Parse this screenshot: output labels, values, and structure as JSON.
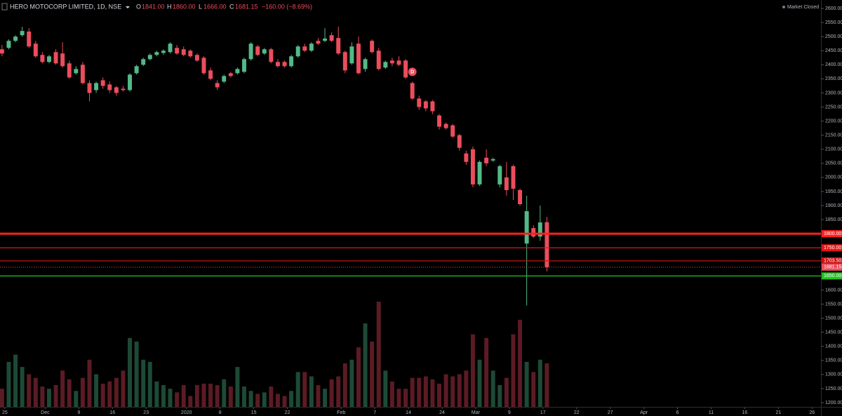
{
  "header": {
    "symbol": "HERO MOTOCORP LIMITED, 1D, NSE",
    "o_label": "O",
    "o": "1841.00",
    "h_label": "H",
    "h": "1860.00",
    "l_label": "L",
    "l": "1666.00",
    "c_label": "C",
    "c": "1681.15",
    "change": "−160.00 (−8.69%)",
    "status": "Market Closed"
  },
  "chart_data": {
    "type": "candlestick",
    "up_color": "#53b987",
    "down_color": "#eb4d5c",
    "volume_up_color": "#1d4a36",
    "volume_down_color": "#5c1b24",
    "open": [
      2455,
      2460,
      2485,
      2505,
      2518,
      2475,
      2435,
      2410,
      2445,
      2440,
      2405,
      2370,
      2400,
      2335,
      2310,
      2345,
      2330,
      2320,
      2315,
      2310,
      2370,
      2400,
      2420,
      2435,
      2442,
      2445,
      2460,
      2455,
      2450,
      2435,
      2425,
      2380,
      2335,
      2340,
      2370,
      2370,
      2375,
      2420,
      2465,
      2440,
      2455,
      2410,
      2410,
      2395,
      2430,
      2465,
      2450,
      2485,
      2485,
      2505,
      2495,
      2445,
      2405,
      2475,
      2385,
      2485,
      2450,
      2390,
      2415,
      2415,
      2415,
      2335,
      2280,
      2270,
      2270,
      2220,
      2190,
      2185,
      2150,
      2085,
      2100,
      1975,
      2070,
      2060,
      1975,
      2000,
      2040,
      1955,
      1765,
      1820,
      1790,
      1841
    ],
    "high": [
      2470,
      2490,
      2505,
      2535,
      2530,
      2485,
      2445,
      2435,
      2455,
      2480,
      2415,
      2395,
      2410,
      2345,
      2340,
      2355,
      2340,
      2325,
      2325,
      2370,
      2400,
      2425,
      2440,
      2450,
      2455,
      2480,
      2470,
      2465,
      2455,
      2440,
      2430,
      2390,
      2345,
      2365,
      2375,
      2390,
      2425,
      2480,
      2470,
      2460,
      2460,
      2420,
      2415,
      2435,
      2470,
      2475,
      2480,
      2495,
      2530,
      2515,
      2535,
      2450,
      2480,
      2500,
      2425,
      2490,
      2460,
      2415,
      2425,
      2430,
      2420,
      2340,
      2290,
      2275,
      2275,
      2225,
      2195,
      2190,
      2155,
      2095,
      2110,
      2060,
      2100,
      2070,
      2045,
      2055,
      2045,
      1960,
      1935,
      1830,
      1900,
      1860
    ],
    "low": [
      2430,
      2455,
      2480,
      2500,
      2460,
      2425,
      2405,
      2405,
      2400,
      2390,
      2350,
      2365,
      2330,
      2270,
      2300,
      2315,
      2300,
      2290,
      2305,
      2305,
      2365,
      2395,
      2415,
      2430,
      2435,
      2440,
      2435,
      2430,
      2425,
      2410,
      2365,
      2345,
      2310,
      2335,
      2355,
      2365,
      2370,
      2415,
      2430,
      2435,
      2405,
      2390,
      2390,
      2390,
      2425,
      2445,
      2445,
      2470,
      2480,
      2480,
      2435,
      2370,
      2400,
      2365,
      2375,
      2440,
      2380,
      2385,
      2395,
      2395,
      2350,
      2275,
      2240,
      2235,
      2225,
      2170,
      2170,
      2140,
      2095,
      2045,
      1965,
      1970,
      2040,
      2055,
      1965,
      1935,
      1920,
      1900,
      1545,
      1785,
      1775,
      1666
    ],
    "close": [
      2440,
      2485,
      2500,
      2520,
      2465,
      2430,
      2410,
      2430,
      2405,
      2395,
      2355,
      2385,
      2335,
      2300,
      2335,
      2325,
      2310,
      2300,
      2310,
      2365,
      2395,
      2420,
      2435,
      2445,
      2450,
      2475,
      2440,
      2435,
      2430,
      2415,
      2370,
      2350,
      2320,
      2360,
      2360,
      2385,
      2420,
      2475,
      2435,
      2455,
      2410,
      2395,
      2395,
      2430,
      2465,
      2450,
      2475,
      2475,
      2493,
      2485,
      2440,
      2380,
      2465,
      2370,
      2420,
      2445,
      2385,
      2410,
      2405,
      2400,
      2355,
      2280,
      2250,
      2245,
      2235,
      2180,
      2175,
      2145,
      2105,
      2055,
      1975,
      2055,
      2050,
      2065,
      2040,
      1955,
      1960,
      1905,
      1880,
      1790,
      1840,
      1681.15
    ],
    "volume": [
      25,
      62,
      72,
      55,
      45,
      40,
      28,
      25,
      30,
      50,
      38,
      22,
      40,
      65,
      45,
      32,
      35,
      40,
      50,
      95,
      90,
      65,
      62,
      35,
      30,
      25,
      20,
      30,
      15,
      30,
      32,
      32,
      30,
      38,
      28,
      55,
      28,
      22,
      18,
      20,
      28,
      18,
      15,
      22,
      48,
      48,
      42,
      30,
      25,
      38,
      42,
      60,
      65,
      82,
      115,
      90,
      145,
      50,
      35,
      25,
      25,
      40,
      40,
      42,
      38,
      32,
      45,
      42,
      45,
      50,
      100,
      65,
      95,
      50,
      30,
      40,
      100,
      120,
      62,
      48,
      65,
      60
    ],
    "xlim": [
      -0.3,
      120.7
    ],
    "ylim": [
      1185,
      2630
    ],
    "xticks": [
      {
        "value": 0,
        "label": "25"
      },
      {
        "value": 6,
        "label": "Dec"
      },
      {
        "value": 11,
        "label": "9"
      },
      {
        "value": 16,
        "label": "16"
      },
      {
        "value": 21,
        "label": "23"
      },
      {
        "value": 27,
        "label": "2020"
      },
      {
        "value": 32,
        "label": "8"
      },
      {
        "value": 37,
        "label": "15"
      },
      {
        "value": 42,
        "label": "22"
      },
      {
        "value": 50,
        "label": "Feb"
      },
      {
        "value": 55,
        "label": "7"
      },
      {
        "value": 60,
        "label": "14"
      },
      {
        "value": 65,
        "label": "24"
      },
      {
        "value": 70,
        "label": "Mar"
      },
      {
        "value": 75,
        "label": "9"
      },
      {
        "value": 80,
        "label": "17"
      },
      {
        "value": 85,
        "label": "22"
      },
      {
        "value": 90,
        "label": "27"
      },
      {
        "value": 95,
        "label": "Apr"
      },
      {
        "value": 100,
        "label": "6"
      },
      {
        "value": 105,
        "label": "11"
      },
      {
        "value": 110,
        "label": "16"
      },
      {
        "value": 115,
        "label": "21"
      },
      {
        "value": 120,
        "label": "26"
      }
    ],
    "yticks": [
      {
        "value": 2600,
        "label": "2600.00"
      },
      {
        "value": 2550,
        "label": "2550.00"
      },
      {
        "value": 2500,
        "label": "2500.00"
      },
      {
        "value": 2450,
        "label": "2450.00"
      },
      {
        "value": 2400,
        "label": "2400.00"
      },
      {
        "value": 2350,
        "label": "2350.00"
      },
      {
        "value": 2300,
        "label": "2300.00"
      },
      {
        "value": 2250,
        "label": "2250.00"
      },
      {
        "value": 2200,
        "label": "2200.00"
      },
      {
        "value": 2150,
        "label": "2150.00"
      },
      {
        "value": 2100,
        "label": "2100.00"
      },
      {
        "value": 2050,
        "label": "2050.00"
      },
      {
        "value": 2000,
        "label": "2000.00"
      },
      {
        "value": 1950,
        "label": "1950.00"
      },
      {
        "value": 1900,
        "label": "1900.00"
      },
      {
        "value": 1850,
        "label": "1850.00"
      },
      {
        "value": 1600,
        "label": "1600.00"
      },
      {
        "value": 1550,
        "label": "1550.00"
      },
      {
        "value": 1500,
        "label": "1500.00"
      },
      {
        "value": 1450,
        "label": "1450.00"
      },
      {
        "value": 1400,
        "label": "1400.00"
      },
      {
        "value": 1350,
        "label": "1350.00"
      },
      {
        "value": 1300,
        "label": "1300.00"
      },
      {
        "value": 1250,
        "label": "1250.00"
      },
      {
        "value": 1200,
        "label": "1200.00"
      }
    ],
    "levels": [
      {
        "value": 1800,
        "label": "1800.00",
        "color": "#ff2020",
        "style": "thick"
      },
      {
        "value": 1750,
        "label": "1750.00",
        "color": "#e01818",
        "style": "solid"
      },
      {
        "value": 1703.5,
        "label": "1703.50",
        "color": "#c81414",
        "style": "solid"
      },
      {
        "value": 1681.15,
        "label": "1681.15",
        "color": "#eb4d5c",
        "style": "dotted"
      },
      {
        "value": 1650,
        "label": "1650.00",
        "color": "#22c322",
        "style": "solid"
      }
    ],
    "event": {
      "index": 61,
      "label": "D"
    }
  }
}
